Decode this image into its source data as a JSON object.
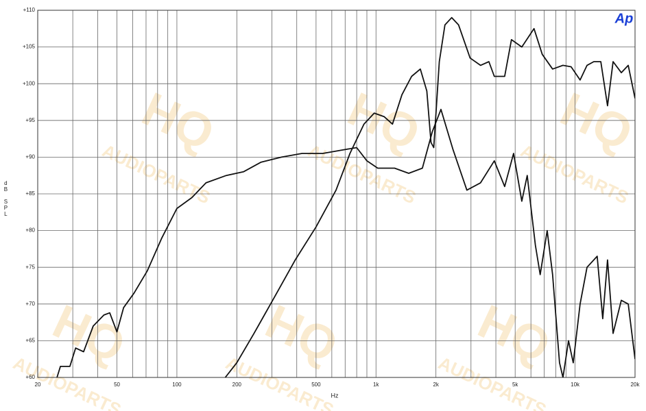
{
  "chart_data": {
    "type": "line",
    "x_scale": "log",
    "grid": true,
    "xlabel": "Hz",
    "ylabel": "dB SPL",
    "logo": "Ap",
    "watermark": [
      "HQ",
      "AUDIOPARTS"
    ],
    "xlim": [
      20,
      20000
    ],
    "ylim": [
      60,
      110
    ],
    "xticks": [
      20,
      50,
      100,
      200,
      500,
      {
        "value": 1000,
        "label": "1k"
      },
      {
        "value": 2000,
        "label": "2k"
      },
      {
        "value": 5000,
        "label": "5k"
      },
      {
        "value": 10000,
        "label": "10k"
      },
      {
        "value": 20000,
        "label": "20k"
      }
    ],
    "xminorticks": [
      30,
      40,
      60,
      70,
      80,
      90,
      300,
      400,
      600,
      700,
      800,
      900,
      3000,
      4000,
      6000,
      7000,
      8000,
      9000
    ],
    "yticks": [
      {
        "value": 60,
        "label": "+60"
      },
      {
        "value": 65,
        "label": "+65"
      },
      {
        "value": 70,
        "label": "+70"
      },
      {
        "value": 75,
        "label": "+75"
      },
      {
        "value": 80,
        "label": "+80"
      },
      {
        "value": 85,
        "label": "+85"
      },
      {
        "value": 90,
        "label": "+90"
      },
      {
        "value": 95,
        "label": "+95"
      },
      {
        "value": 100,
        "label": "+100"
      },
      {
        "value": 105,
        "label": "+105"
      },
      {
        "value": 110,
        "label": "+110"
      }
    ],
    "series": [
      {
        "color": "#111111",
        "x": [
          25,
          26,
          29,
          31,
          34,
          38,
          43,
          46,
          50,
          54,
          61,
          71,
          84,
          100,
          119,
          140,
          177,
          216,
          264,
          335,
          425,
          540,
          685,
          800,
          900,
          1020,
          1240,
          1460,
          1710,
          1920,
          2120,
          2440,
          2860,
          3350,
          3930,
          4430,
          4910,
          5400,
          5750,
          6320,
          6680,
          7240,
          7710,
          8350,
          8690,
          9270,
          9790,
          10600,
          11480,
          12910,
          13770,
          14550,
          15520,
          17060,
          18490,
          20000
        ],
        "values": [
          60,
          61.5,
          61.5,
          64,
          63.5,
          67,
          68.5,
          68.8,
          66.2,
          69.5,
          71.5,
          74.5,
          79,
          83,
          84.5,
          86.5,
          87.5,
          88,
          89.3,
          90,
          90.5,
          90.5,
          91,
          91.3,
          89.5,
          88.5,
          88.5,
          87.8,
          88.5,
          93.5,
          96.5,
          91,
          85.5,
          86.5,
          89.5,
          86,
          90.5,
          84,
          87.5,
          78,
          74,
          80,
          74,
          62,
          60,
          65,
          62,
          70,
          75,
          76.5,
          68,
          76,
          66,
          70.5,
          70,
          62.5
        ]
      },
      {
        "color": "#111111",
        "x": [
          175,
          200,
          244,
          310,
          393,
          500,
          630,
          740,
          870,
          980,
          1100,
          1210,
          1350,
          1510,
          1670,
          1800,
          1890,
          1950,
          2080,
          2220,
          2400,
          2600,
          2970,
          3350,
          3690,
          3930,
          4430,
          4790,
          5400,
          6220,
          6840,
          7710,
          8690,
          9550,
          10600,
          11480,
          12420,
          13460,
          14550,
          15520,
          17060,
          18490,
          20000
        ],
        "values": [
          60,
          62,
          66,
          71,
          76,
          80.5,
          85.5,
          90.5,
          94.5,
          96,
          95.5,
          94.5,
          98.5,
          101,
          102,
          99,
          92,
          91.3,
          103,
          108,
          109,
          108,
          103.5,
          102.5,
          103,
          101,
          101,
          106,
          105,
          107.5,
          104,
          102,
          102.5,
          102.3,
          100.5,
          102.5,
          103,
          103,
          97,
          103,
          101.5,
          102.5,
          98
        ]
      }
    ]
  }
}
